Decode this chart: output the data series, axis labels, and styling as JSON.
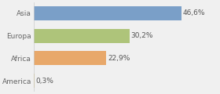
{
  "categories": [
    "America",
    "Africa",
    "Europa",
    "Asia"
  ],
  "values": [
    0.3,
    22.9,
    30.2,
    46.6
  ],
  "labels": [
    "0,3%",
    "22,9%",
    "30,2%",
    "46,6%"
  ],
  "bar_colors": [
    "#e8b87a",
    "#e8b87a",
    "#b5c98a",
    "#7a9fc8"
  ],
  "background_color": "#f0f0f0",
  "label_fontsize": 6.5,
  "tick_fontsize": 6.5,
  "xlim": 58,
  "bar_height": 0.62
}
